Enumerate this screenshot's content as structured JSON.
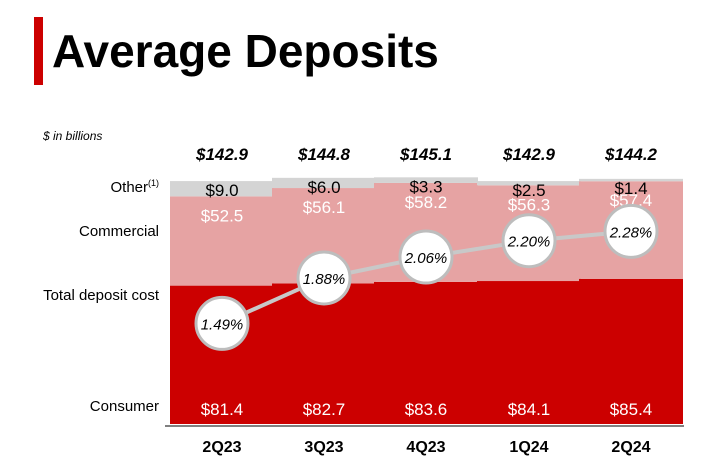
{
  "header": {
    "title": "Average Deposits",
    "units_note": "$ in billions"
  },
  "row_labels": {
    "other": "Other",
    "other_footnote": "(1)",
    "commercial": "Commercial",
    "total_deposit_cost": "Total deposit cost",
    "consumer": "Consumer"
  },
  "colors": {
    "consumer": "#cc0000",
    "commercial": "#e6a3a3",
    "other": "#d4d4d4",
    "cost_line": "#c8c8c8",
    "accent": "#cc0000"
  },
  "chart_data": {
    "type": "bar",
    "stacked": true,
    "categories": [
      "2Q23",
      "3Q23",
      "4Q23",
      "1Q24",
      "2Q24"
    ],
    "series": [
      {
        "name": "Consumer",
        "values": [
          81.4,
          82.7,
          83.6,
          84.1,
          85.4
        ],
        "labels": [
          "$81.4",
          "$82.7",
          "$83.6",
          "$84.1",
          "$85.4"
        ]
      },
      {
        "name": "Commercial",
        "values": [
          52.5,
          56.1,
          58.2,
          56.3,
          57.4
        ],
        "labels": [
          "$52.5",
          "$56.1",
          "$58.2",
          "$56.3",
          "$57.4"
        ]
      },
      {
        "name": "Other",
        "values": [
          9.0,
          6.0,
          3.3,
          2.5,
          1.4
        ],
        "labels": [
          "$9.0",
          "$6.0",
          "$3.3",
          "$2.5",
          "$1.4"
        ]
      }
    ],
    "totals": [
      "$142.9",
      "$144.8",
      "$145.1",
      "$142.9",
      "$144.2"
    ],
    "line": {
      "name": "Total deposit cost",
      "values": [
        1.49,
        1.88,
        2.06,
        2.2,
        2.28
      ],
      "labels": [
        "1.49%",
        "1.88%",
        "2.06%",
        "2.20%",
        "2.28%"
      ]
    },
    "ylim": [
      0,
      150
    ],
    "grid": false,
    "legend": "left"
  }
}
